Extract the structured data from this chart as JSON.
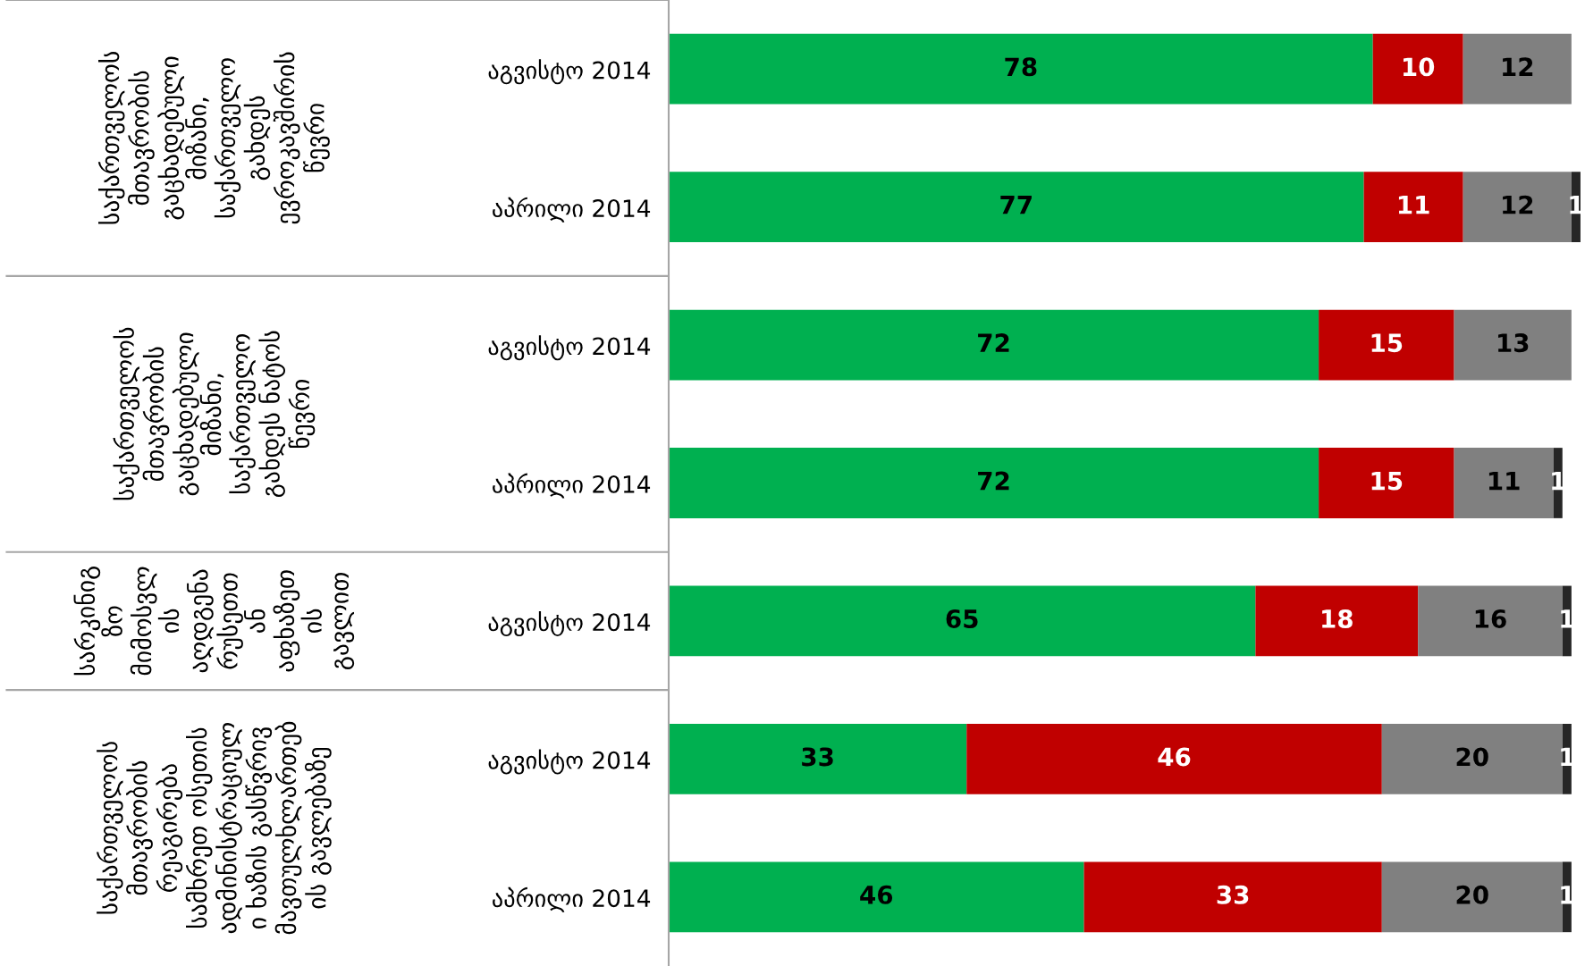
{
  "chart_data": {
    "type": "bar",
    "orientation": "horizontal",
    "stacked": true,
    "data_labels": true,
    "categories": [
      "აგვისტო 2014",
      "აპრილი 2014",
      "აგვისტო 2014",
      "აპრილი 2014",
      "აგვისტო 2014",
      "აგვისტო 2014",
      "აპრილი 2014"
    ],
    "series": [
      {
        "color": "#00b050",
        "values": [
          78,
          77,
          72,
          72,
          65,
          33,
          46
        ]
      },
      {
        "color": "#c00000",
        "values": [
          10,
          11,
          15,
          15,
          18,
          46,
          33
        ]
      },
      {
        "color": "#808080",
        "values": [
          12,
          12,
          13,
          11,
          16,
          20,
          20
        ]
      },
      {
        "color": "#262626",
        "values": [
          null,
          1,
          null,
          1,
          1,
          1,
          1
        ]
      }
    ],
    "xlim": [
      0,
      101.5
    ],
    "tick_labels": "y",
    "annotations": [
      "საქართველოს\nმთავრობის\nგაცხადებული\nმიზანი,\nსაქართველო\nგახდეს\nევროკავშირის\nწევრი",
      "საქართველოს\nმთავრობის\nგაცხადებული\nმიზანი,\nსაქართველო\nგახდეს ნატოს\nწევრი",
      "სარკინიგ\nზო\nმიმოსვლ\nის\nაღდგენა\nრუსეთთ\nან\nაფხაზეთ\nის\nგავლით",
      "საქართველოს\nმთავრობის\nრეაგირება\nსამხრეთ ოსეთის\nადმინისტრაციულ\nი ხაზის გასწვრივ\nმავთულხლართებ\nის გავლებაზე"
    ]
  }
}
